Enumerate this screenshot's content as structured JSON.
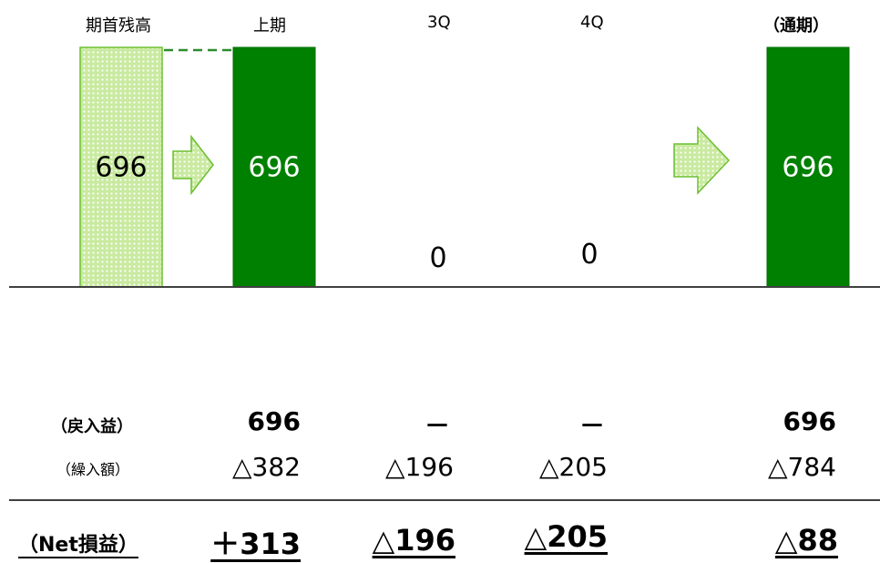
{
  "headers": {
    "opening_balance": "期首残高",
    "first_half": "上期",
    "q3": "3Q",
    "q4": "4Q",
    "full_year": "（通期）"
  },
  "chart_data": {
    "type": "bar",
    "categories": [
      "期首残高",
      "上期",
      "3Q",
      "4Q",
      "（通期）"
    ],
    "values": [
      696,
      696,
      0,
      0,
      696
    ],
    "value_labels": [
      "696",
      "696",
      "0",
      "0",
      "696"
    ],
    "ylim": [
      0,
      696
    ]
  },
  "colors": {
    "bar_solid": "#008000",
    "bar_pattern": "#b8e08a",
    "arrow": "#8ed04a"
  },
  "rows": {
    "reversal_label": "（戻入益）",
    "reversal": [
      "696",
      "－",
      "－",
      "696"
    ],
    "provision_label": "（繰入額）",
    "provision": [
      "△382",
      "△196",
      "△205",
      "△784"
    ],
    "net_label": "（Net損益）",
    "net": [
      "＋313",
      "△196",
      "△205",
      "△88"
    ]
  }
}
